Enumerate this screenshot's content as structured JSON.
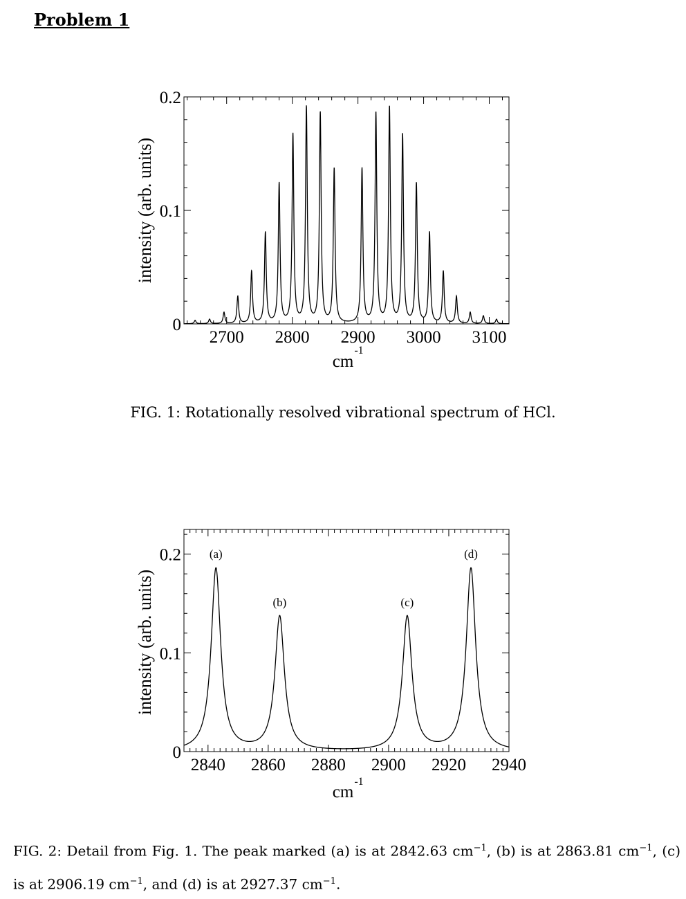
{
  "heading": "Problem 1",
  "figure1": {
    "caption": "FIG. 1: Rotationally resolved vibrational spectrum of HCl.",
    "chart_data": {
      "type": "line",
      "ylabel": "intensity (arb. units)",
      "xlabel_base": "cm",
      "xlabel_exponent": "-1",
      "xlim": [
        2635,
        3130
      ],
      "ylim": [
        0,
        0.2
      ],
      "x_ticks": [
        2700,
        2800,
        2900,
        3000,
        3100
      ],
      "x_tick_labels": [
        "2700",
        "2800",
        "2900",
        "3000",
        "3100"
      ],
      "y_ticks": [
        0,
        0.1,
        0.2
      ],
      "y_tick_labels": [
        "0",
        "0.1",
        "0.2"
      ],
      "peak_positions": [
        2652.0,
        2674.0,
        2696.0,
        2717.0,
        2738.0,
        2759.0,
        2780.0,
        2801.0,
        2821.5,
        2842.63,
        2863.81,
        2906.19,
        2927.37,
        2948.0,
        2968.0,
        2989.0,
        3009.0,
        3030.0,
        3050.0,
        3071.0,
        3091.0,
        3111.0
      ],
      "peak_heights": [
        0.003,
        0.004,
        0.01,
        0.024,
        0.046,
        0.08,
        0.123,
        0.166,
        0.19,
        0.185,
        0.136,
        0.136,
        0.185,
        0.19,
        0.166,
        0.123,
        0.08,
        0.046,
        0.024,
        0.01,
        0.007,
        0.004
      ]
    }
  },
  "figure2": {
    "caption_parts": {
      "p1": "FIG. 2: Detail from Fig. 1. The peak marked (a) is at 2842.63 cm",
      "p2": ", (b) is at 2863.81 cm",
      "p3": ", (c) is at 2906.19 cm",
      "p4": ", and (d) is at 2927.37 cm",
      "p5": ".",
      "sup": "−1"
    },
    "chart_data": {
      "type": "line",
      "ylabel": "intensity (arb. units)",
      "xlabel_base": "cm",
      "xlabel_exponent": "-1",
      "xlim": [
        2832,
        2940
      ],
      "ylim": [
        0,
        0.225
      ],
      "x_ticks": [
        2840,
        2860,
        2880,
        2900,
        2920,
        2940
      ],
      "x_tick_labels": [
        "2840",
        "2860",
        "2880",
        "2900",
        "2920",
        "2940"
      ],
      "y_ticks": [
        0,
        0.1,
        0.2
      ],
      "y_tick_labels": [
        "0",
        "0.1",
        "0.2"
      ],
      "peaks": [
        {
          "label": "(a)",
          "x": 2842.63,
          "height": 0.185
        },
        {
          "label": "(b)",
          "x": 2863.81,
          "height": 0.136
        },
        {
          "label": "(c)",
          "x": 2906.19,
          "height": 0.136
        },
        {
          "label": "(d)",
          "x": 2927.37,
          "height": 0.185
        }
      ]
    }
  }
}
